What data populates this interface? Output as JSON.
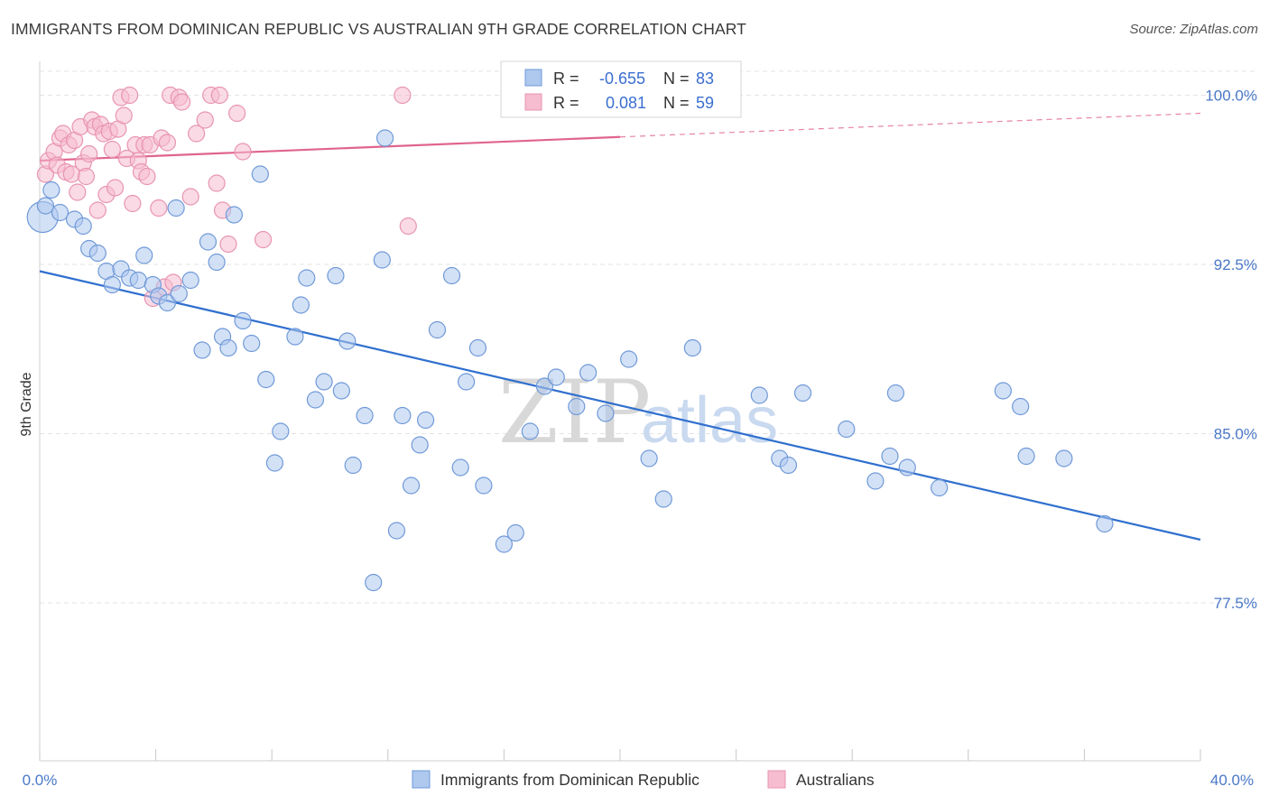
{
  "header": {
    "title": "IMMIGRANTS FROM DOMINICAN REPUBLIC VS AUSTRALIAN 9TH GRADE CORRELATION CHART",
    "source": "Source: ZipAtlas.com"
  },
  "watermark": {
    "zip": "ZIP",
    "atlas": "atlas"
  },
  "legend": {
    "rows": [
      {
        "r_label": "R =",
        "r_value": "-0.655",
        "n_label": "N =",
        "n_value": "83"
      },
      {
        "r_label": "R =",
        "r_value": "0.081",
        "n_label": "N =",
        "n_value": "59"
      }
    ]
  },
  "bottom_legend": {
    "items": [
      {
        "label": "Immigrants from Dominican Republic"
      },
      {
        "label": "Australians"
      }
    ]
  },
  "colors": {
    "blue_fill": "#aec8ee",
    "blue_stroke": "#6f99d8",
    "blue_line": "#2f6fcf",
    "pink_fill": "#f6bccf",
    "pink_stroke": "#e894b0",
    "pink_line": "#e0648e",
    "grid": "#e3e3e3",
    "tick_text": "#4a78c8"
  },
  "chart_data": {
    "type": "scatter",
    "title": "IMMIGRANTS FROM DOMINICAN REPUBLIC VS AUSTRALIAN 9TH GRADE CORRELATION CHART",
    "xlabel": "",
    "ylabel": "9th Grade",
    "xlim": [
      0,
      40
    ],
    "ylim": [
      70.5,
      101.5
    ],
    "x_tick_labels": [
      "0.0%",
      "40.0%"
    ],
    "y_ticks": [
      77.5,
      85.0,
      92.5,
      100.0
    ],
    "y_tick_labels": [
      "77.5%",
      "85.0%",
      "92.5%",
      "100.0%"
    ],
    "grid": true,
    "legend_position": "top-center",
    "series": [
      {
        "name": "Immigrants from Dominican Republic",
        "color": "#aec8ee",
        "R": -0.655,
        "N": 83,
        "trend": {
          "x": [
            0,
            40
          ],
          "y": [
            92.2,
            80.3
          ]
        },
        "points": [
          {
            "x": 0.1,
            "y": 94.6
          },
          {
            "x": 0.4,
            "y": 95.8
          },
          {
            "x": 0.7,
            "y": 94.8
          },
          {
            "x": 1.2,
            "y": 94.5
          },
          {
            "x": 1.5,
            "y": 94.2
          },
          {
            "x": 1.7,
            "y": 93.2
          },
          {
            "x": 2.0,
            "y": 93.0
          },
          {
            "x": 2.3,
            "y": 92.2
          },
          {
            "x": 2.5,
            "y": 91.6
          },
          {
            "x": 2.8,
            "y": 92.3
          },
          {
            "x": 3.1,
            "y": 91.9
          },
          {
            "x": 3.4,
            "y": 91.8
          },
          {
            "x": 3.6,
            "y": 92.9
          },
          {
            "x": 3.9,
            "y": 91.6
          },
          {
            "x": 4.1,
            "y": 91.1
          },
          {
            "x": 4.4,
            "y": 90.8
          },
          {
            "x": 4.8,
            "y": 91.2
          },
          {
            "x": 4.7,
            "y": 95.0
          },
          {
            "x": 5.2,
            "y": 91.8
          },
          {
            "x": 5.6,
            "y": 88.7
          },
          {
            "x": 5.8,
            "y": 93.5
          },
          {
            "x": 6.1,
            "y": 92.6
          },
          {
            "x": 6.3,
            "y": 89.3
          },
          {
            "x": 6.5,
            "y": 88.8
          },
          {
            "x": 6.7,
            "y": 94.7
          },
          {
            "x": 7.0,
            "y": 90.0
          },
          {
            "x": 7.3,
            "y": 89.0
          },
          {
            "x": 7.6,
            "y": 96.5
          },
          {
            "x": 7.8,
            "y": 87.4
          },
          {
            "x": 8.1,
            "y": 83.7
          },
          {
            "x": 8.3,
            "y": 85.1
          },
          {
            "x": 8.8,
            "y": 89.3
          },
          {
            "x": 9.0,
            "y": 90.7
          },
          {
            "x": 9.2,
            "y": 91.9
          },
          {
            "x": 9.5,
            "y": 86.5
          },
          {
            "x": 9.8,
            "y": 87.3
          },
          {
            "x": 10.2,
            "y": 92.0
          },
          {
            "x": 10.4,
            "y": 86.9
          },
          {
            "x": 10.6,
            "y": 89.1
          },
          {
            "x": 10.8,
            "y": 83.6
          },
          {
            "x": 11.2,
            "y": 85.8
          },
          {
            "x": 11.5,
            "y": 78.4
          },
          {
            "x": 11.8,
            "y": 92.7
          },
          {
            "x": 11.9,
            "y": 98.1
          },
          {
            "x": 12.3,
            "y": 80.7
          },
          {
            "x": 12.5,
            "y": 85.8
          },
          {
            "x": 12.8,
            "y": 82.7
          },
          {
            "x": 13.1,
            "y": 84.5
          },
          {
            "x": 13.3,
            "y": 85.6
          },
          {
            "x": 13.7,
            "y": 89.6
          },
          {
            "x": 14.2,
            "y": 92.0
          },
          {
            "x": 14.5,
            "y": 83.5
          },
          {
            "x": 14.7,
            "y": 87.3
          },
          {
            "x": 15.1,
            "y": 88.8
          },
          {
            "x": 15.3,
            "y": 82.7
          },
          {
            "x": 16.0,
            "y": 80.1
          },
          {
            "x": 16.4,
            "y": 80.6
          },
          {
            "x": 16.9,
            "y": 85.1
          },
          {
            "x": 17.4,
            "y": 87.1
          },
          {
            "x": 17.8,
            "y": 87.5
          },
          {
            "x": 18.5,
            "y": 86.2
          },
          {
            "x": 18.9,
            "y": 87.7
          },
          {
            "x": 19.5,
            "y": 85.9
          },
          {
            "x": 20.3,
            "y": 88.3
          },
          {
            "x": 21.0,
            "y": 83.9
          },
          {
            "x": 21.5,
            "y": 82.1
          },
          {
            "x": 22.5,
            "y": 88.8
          },
          {
            "x": 24.8,
            "y": 86.7
          },
          {
            "x": 25.5,
            "y": 83.9
          },
          {
            "x": 25.8,
            "y": 83.6
          },
          {
            "x": 26.3,
            "y": 86.8
          },
          {
            "x": 27.8,
            "y": 85.2
          },
          {
            "x": 28.8,
            "y": 82.9
          },
          {
            "x": 29.3,
            "y": 84.0
          },
          {
            "x": 29.5,
            "y": 86.8
          },
          {
            "x": 29.9,
            "y": 83.5
          },
          {
            "x": 31.0,
            "y": 82.6
          },
          {
            "x": 33.2,
            "y": 86.9
          },
          {
            "x": 33.8,
            "y": 86.2
          },
          {
            "x": 34.0,
            "y": 84.0
          },
          {
            "x": 35.3,
            "y": 83.9
          },
          {
            "x": 36.7,
            "y": 81.0
          },
          {
            "x": 0.2,
            "y": 95.1
          }
        ]
      },
      {
        "name": "Australians",
        "color": "#f6bccf",
        "R": 0.081,
        "N": 59,
        "trend": {
          "x": [
            0,
            40
          ],
          "y": [
            97.1,
            99.2
          ]
        },
        "trend_solid_until_x": 20,
        "points": [
          {
            "x": 0.2,
            "y": 96.5
          },
          {
            "x": 0.3,
            "y": 97.1
          },
          {
            "x": 0.5,
            "y": 97.5
          },
          {
            "x": 0.6,
            "y": 96.9
          },
          {
            "x": 0.7,
            "y": 98.1
          },
          {
            "x": 0.8,
            "y": 98.3
          },
          {
            "x": 0.9,
            "y": 96.6
          },
          {
            "x": 1.0,
            "y": 97.8
          },
          {
            "x": 1.1,
            "y": 96.5
          },
          {
            "x": 1.2,
            "y": 98.0
          },
          {
            "x": 1.3,
            "y": 95.7
          },
          {
            "x": 1.4,
            "y": 98.6
          },
          {
            "x": 1.5,
            "y": 97.0
          },
          {
            "x": 1.6,
            "y": 96.4
          },
          {
            "x": 1.7,
            "y": 97.4
          },
          {
            "x": 1.8,
            "y": 98.9
          },
          {
            "x": 1.9,
            "y": 98.6
          },
          {
            "x": 2.0,
            "y": 94.9
          },
          {
            "x": 2.1,
            "y": 98.7
          },
          {
            "x": 2.2,
            "y": 98.3
          },
          {
            "x": 2.3,
            "y": 95.6
          },
          {
            "x": 2.4,
            "y": 98.4
          },
          {
            "x": 2.5,
            "y": 97.6
          },
          {
            "x": 2.6,
            "y": 95.9
          },
          {
            "x": 2.8,
            "y": 99.9
          },
          {
            "x": 2.7,
            "y": 98.5
          },
          {
            "x": 2.9,
            "y": 99.1
          },
          {
            "x": 3.0,
            "y": 97.2
          },
          {
            "x": 3.1,
            "y": 100.0
          },
          {
            "x": 3.2,
            "y": 95.2
          },
          {
            "x": 3.3,
            "y": 97.8
          },
          {
            "x": 3.4,
            "y": 97.1
          },
          {
            "x": 3.5,
            "y": 96.6
          },
          {
            "x": 3.6,
            "y": 97.8
          },
          {
            "x": 3.7,
            "y": 96.4
          },
          {
            "x": 3.8,
            "y": 97.8
          },
          {
            "x": 3.9,
            "y": 91.0
          },
          {
            "x": 4.1,
            "y": 95.0
          },
          {
            "x": 4.2,
            "y": 98.1
          },
          {
            "x": 4.3,
            "y": 91.5
          },
          {
            "x": 4.4,
            "y": 97.9
          },
          {
            "x": 4.5,
            "y": 100.0
          },
          {
            "x": 4.6,
            "y": 91.7
          },
          {
            "x": 4.8,
            "y": 99.9
          },
          {
            "x": 4.9,
            "y": 99.7
          },
          {
            "x": 5.2,
            "y": 95.5
          },
          {
            "x": 5.4,
            "y": 98.3
          },
          {
            "x": 5.7,
            "y": 98.9
          },
          {
            "x": 5.9,
            "y": 100.0
          },
          {
            "x": 6.1,
            "y": 96.1
          },
          {
            "x": 6.2,
            "y": 100.0
          },
          {
            "x": 6.3,
            "y": 94.9
          },
          {
            "x": 6.5,
            "y": 93.4
          },
          {
            "x": 6.8,
            "y": 99.2
          },
          {
            "x": 7.0,
            "y": 97.5
          },
          {
            "x": 7.7,
            "y": 93.6
          },
          {
            "x": 12.5,
            "y": 100.0
          },
          {
            "x": 12.7,
            "y": 94.2
          },
          {
            "x": 18.2,
            "y": 100.0
          }
        ]
      }
    ]
  }
}
